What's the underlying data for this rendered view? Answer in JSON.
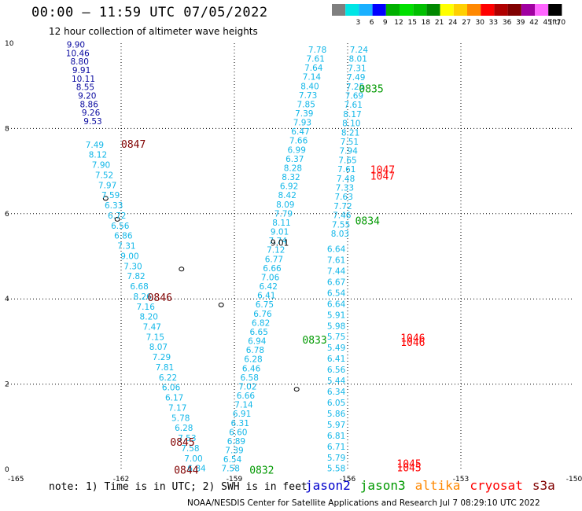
{
  "header": {
    "title": "00:00 — 11:59 UTC 07/05/2022",
    "subtitle": "12 hour collection of altimeter wave heights"
  },
  "colorbar": {
    "unit": "(ft)",
    "bins": [
      {
        "label": "",
        "color": "#7f7f7f"
      },
      {
        "label": "3",
        "color": "#00e5e5"
      },
      {
        "label": "6",
        "color": "#19b0ff"
      },
      {
        "label": "9",
        "color": "#0000ff"
      },
      {
        "label": "12",
        "color": "#00b000"
      },
      {
        "label": "15",
        "color": "#00e000"
      },
      {
        "label": "18",
        "color": "#00c000"
      },
      {
        "label": "21",
        "color": "#008800"
      },
      {
        "label": "24",
        "color": "#ffff00"
      },
      {
        "label": "27",
        "color": "#ffd000"
      },
      {
        "label": "30",
        "color": "#ff8800"
      },
      {
        "label": "33",
        "color": "#ff0000"
      },
      {
        "label": "36",
        "color": "#b00000"
      },
      {
        "label": "39",
        "color": "#800000"
      },
      {
        "label": "42",
        "color": "#a000a0"
      },
      {
        "label": "45",
        "color": "#ff66ff"
      },
      {
        "label": "70",
        "color": "#000000"
      }
    ]
  },
  "map": {
    "x_ticks": [
      "-165",
      "-162",
      "-159",
      "-156",
      "-153",
      "-150"
    ],
    "y_ticks": [
      "0",
      "2",
      "4",
      "6",
      "8",
      "10"
    ],
    "lon_range": [
      -165,
      -150
    ],
    "lat_range": [
      0,
      10
    ],
    "track_colors": {
      "jason2": "#0000cc",
      "jason3": "#009900",
      "altika": "#ff8800",
      "cryosat": "#ff0000",
      "s3a": "#800000"
    },
    "value_colors": {
      "cyan": "#12b7e8",
      "navy": "#0a0aa0",
      "black": "#000000"
    },
    "time_labels": [
      {
        "text": "0847",
        "lon": -162.0,
        "lat": 7.55,
        "color": "s3a"
      },
      {
        "text": "0846",
        "lon": -161.3,
        "lat": 3.95,
        "color": "s3a"
      },
      {
        "text": "0845",
        "lon": -160.7,
        "lat": 0.55,
        "color": "s3a"
      },
      {
        "text": "0844",
        "lon": -160.6,
        "lat": -0.1,
        "color": "s3a"
      },
      {
        "text": "0835",
        "lon": -155.7,
        "lat": 8.85,
        "color": "jason3"
      },
      {
        "text": "0834",
        "lon": -155.8,
        "lat": 5.75,
        "color": "jason3"
      },
      {
        "text": "0833",
        "lon": -157.2,
        "lat": 2.95,
        "color": "jason3"
      },
      {
        "text": "0832",
        "lon": -158.6,
        "lat": -0.1,
        "color": "jason3"
      },
      {
        "text": "1047",
        "lon": -155.4,
        "lat": 6.95,
        "color": "cryosat"
      },
      {
        "text": "1047",
        "lon": -155.4,
        "lat": 6.8,
        "color": "cryosat"
      },
      {
        "text": "1046",
        "lon": -154.6,
        "lat": 3.0,
        "color": "cryosat"
      },
      {
        "text": "1046",
        "lon": -154.6,
        "lat": 2.9,
        "color": "cryosat"
      },
      {
        "text": "1045",
        "lon": -154.7,
        "lat": 0.05,
        "color": "cryosat"
      },
      {
        "text": "1045",
        "lon": -154.7,
        "lat": -0.05,
        "color": "cryosat"
      }
    ],
    "islands": [
      {
        "lon": -162.41,
        "lat": 6.36
      },
      {
        "lon": -162.1,
        "lat": 5.87
      },
      {
        "lon": -160.4,
        "lat": 4.7
      },
      {
        "lon": -159.35,
        "lat": 3.86
      },
      {
        "lon": -157.35,
        "lat": 1.88
      }
    ],
    "tracks": [
      {
        "id": "s3a-west",
        "color": "navy",
        "start": {
          "lon": -163.2,
          "lat": 9.9
        },
        "end": {
          "lon": -162.75,
          "lat": 8.1
        },
        "values": [
          "9.90",
          "10.46",
          "8.80",
          "9.91",
          "10.11",
          "8.55",
          "9.20",
          "8.86",
          "9.26",
          "9.53"
        ]
      },
      {
        "id": "s3a-west-low",
        "color": "cyan",
        "start": {
          "lon": -162.7,
          "lat": 7.55
        },
        "end": {
          "lon": -160.0,
          "lat": -0.05
        },
        "values": [
          "7.49",
          "8.12",
          "7.90",
          "7.52",
          "7.97",
          "7.59",
          "6.33",
          "6.72",
          "6.56",
          "6.86",
          "7.31",
          "9.00",
          "7.30",
          "7.82",
          "6.68",
          "8.26",
          "7.16",
          "8.20",
          "7.47",
          "7.15",
          "8.07",
          "7.29",
          "7.81",
          "6.22",
          "6.06",
          "6.17",
          "7.17",
          "5.78",
          "6.28",
          "7.53",
          "7.58",
          "7.00",
          "6.84"
        ]
      },
      {
        "id": "jason3-mid",
        "color": "cyan",
        "start": {
          "lon": -156.8,
          "lat": 9.78
        },
        "end": {
          "lon": -159.1,
          "lat": -0.05
        },
        "values": [
          "7.78",
          "7.61",
          "7.64",
          "7.14",
          "8.40",
          "7.73",
          "7.85",
          "7.39",
          "7.93",
          "6.47",
          "7.66",
          "6.99",
          "6.37",
          "8.28",
          "8.32",
          "6.92",
          "8.42",
          "8.09",
          "7.79",
          "8.11",
          "9.01",
          "7.74",
          "7.12",
          "6.77",
          "6.66",
          "7.06",
          "6.42",
          "6.41",
          "6.75",
          "6.76",
          "6.82",
          "6.65",
          "6.94",
          "6.78",
          "6.28",
          "6.46",
          "6.58",
          "7.02",
          "6.66",
          "7.14",
          "6.91",
          "6.31",
          "6.60",
          "6.89",
          "7.39",
          "6.54",
          "7.58"
        ]
      },
      {
        "id": "jason3-east",
        "color": "cyan",
        "start": {
          "lon": -155.7,
          "lat": 9.78
        },
        "end": {
          "lon": -156.2,
          "lat": 5.46
        },
        "values": [
          "7.24",
          "8.01",
          "7.31",
          "7.49",
          "7.25",
          "7.69",
          "7.61",
          "8.17",
          "8.10",
          "8.21",
          "7.51",
          "7.94",
          "7.65",
          "7.61",
          "7.48",
          "7.33",
          "7.63",
          "7.72",
          "7.46",
          "7.55",
          "8.03"
        ]
      },
      {
        "id": "cryosat-east",
        "color": "cyan",
        "start": {
          "lon": -156.3,
          "lat": 5.1
        },
        "end": {
          "lon": -156.3,
          "lat": -0.05
        },
        "values": [
          "6.64",
          "7.61",
          "7.44",
          "6.67",
          "6.54",
          "6.64",
          "5.91",
          "5.98",
          "5.75",
          "5.49",
          "6.41",
          "6.56",
          "5.44",
          "6.34",
          "6.05",
          "5.86",
          "5.97",
          "6.81",
          "6.71",
          "5.79",
          "5.58"
        ]
      }
    ],
    "marker_black": {
      "text": "9.01",
      "lon": -157.8,
      "lat": 5.25
    }
  },
  "footnote": {
    "note": "note: 1) Time is in UTC; 2) SWH is in feet",
    "missions": [
      {
        "label": "jason2",
        "color": "#0000cc"
      },
      {
        "label": "jason3",
        "color": "#009900"
      },
      {
        "label": "altika",
        "color": "#ff8800"
      },
      {
        "label": "cryosat",
        "color": "#ff0000"
      },
      {
        "label": "s3a",
        "color": "#800000"
      }
    ],
    "credit": "NOAA/NESDIS Center for Satellite Applications and Research    Jul  7 08:29:10 UTC 2022"
  }
}
